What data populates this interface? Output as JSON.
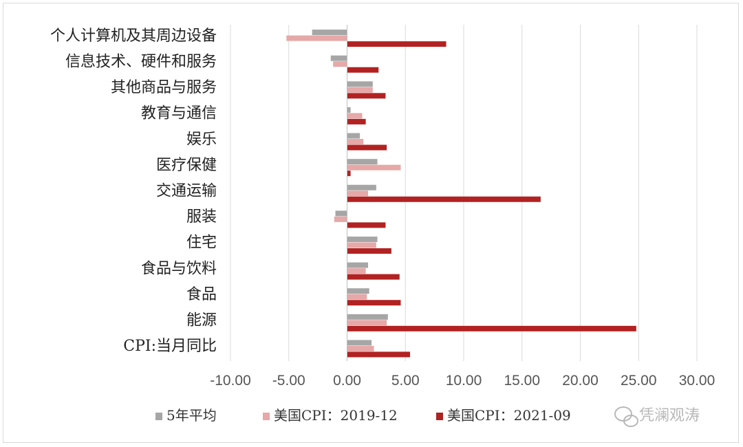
{
  "chart_data": {
    "type": "bar",
    "orientation": "horizontal",
    "title": "",
    "xlabel": "",
    "ylabel": "",
    "xlim": [
      -10,
      30
    ],
    "xticks": [
      "-10.00",
      "-5.00",
      "0.00",
      "5.00",
      "10.00",
      "15.00",
      "20.00",
      "25.00",
      "30.00"
    ],
    "grid": true,
    "legend_position": "bottom",
    "categories": [
      "个人计算机及其周边设备",
      "信息技术、硬件和服务",
      "其他商品与服务",
      "教育与通信",
      "娱乐",
      "医疗保健",
      "交通运输",
      "服装",
      "住宅",
      "食品与饮料",
      "食品",
      "能源",
      "CPI:当月同比"
    ],
    "series": [
      {
        "name": "5年平均",
        "color": "#a6a6a6",
        "values": [
          -3.0,
          -1.4,
          2.2,
          0.3,
          1.1,
          2.6,
          2.5,
          -1.0,
          2.6,
          1.8,
          1.9,
          3.5,
          2.1
        ]
      },
      {
        "name": "美国CPI：2019-12",
        "color": "#e6a8a8",
        "values": [
          -5.2,
          -1.2,
          2.2,
          1.3,
          1.4,
          4.6,
          1.8,
          -1.1,
          2.5,
          1.6,
          1.7,
          3.4,
          2.3
        ]
      },
      {
        "name": "美国CPI：2021-09",
        "color": "#b22222",
        "values": [
          8.5,
          2.7,
          3.3,
          1.6,
          3.4,
          0.3,
          16.6,
          3.3,
          3.8,
          4.5,
          4.6,
          24.8,
          5.4
        ]
      }
    ]
  },
  "watermark": {
    "text": "凭澜观涛",
    "icon": "wechat-icon"
  }
}
